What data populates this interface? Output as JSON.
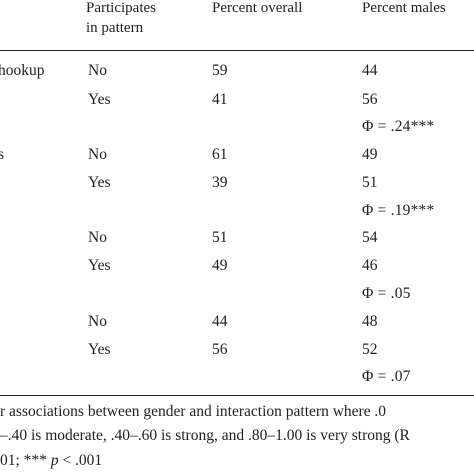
{
  "header": {
    "participates": [
      "Participates",
      "in pattern"
    ],
    "percent_overall": "Percent overall",
    "percent_males": "Percent males"
  },
  "rows": [
    {
      "pattern": "hookup",
      "no_overall": "59",
      "no_males": "44",
      "yes_overall": "41",
      "yes_males": "56",
      "phi": "Φ = .24***"
    },
    {
      "pattern": "s",
      "no_overall": "61",
      "no_males": "49",
      "yes_overall": "39",
      "yes_males": "51",
      "phi": "Φ = .19***"
    },
    {
      "pattern": "",
      "no_overall": "51",
      "no_males": "54",
      "yes_overall": "49",
      "yes_males": "46",
      "phi": "Φ = .05"
    },
    {
      "pattern": "",
      "no_overall": "44",
      "no_males": "48",
      "yes_overall": "56",
      "yes_males": "52",
      "phi": "Φ = .07"
    }
  ],
  "labels": {
    "no": "No",
    "yes": "Yes"
  },
  "footnote": {
    "line1": "r associations between gender and interaction pattern where .0",
    "line2": "–.40 is moderate, .40–.60 is strong, and .80–1.00 is very strong (R",
    "line3_prefix": "01; *** ",
    "line3_p": "p",
    "line3_suffix": " < .001"
  }
}
